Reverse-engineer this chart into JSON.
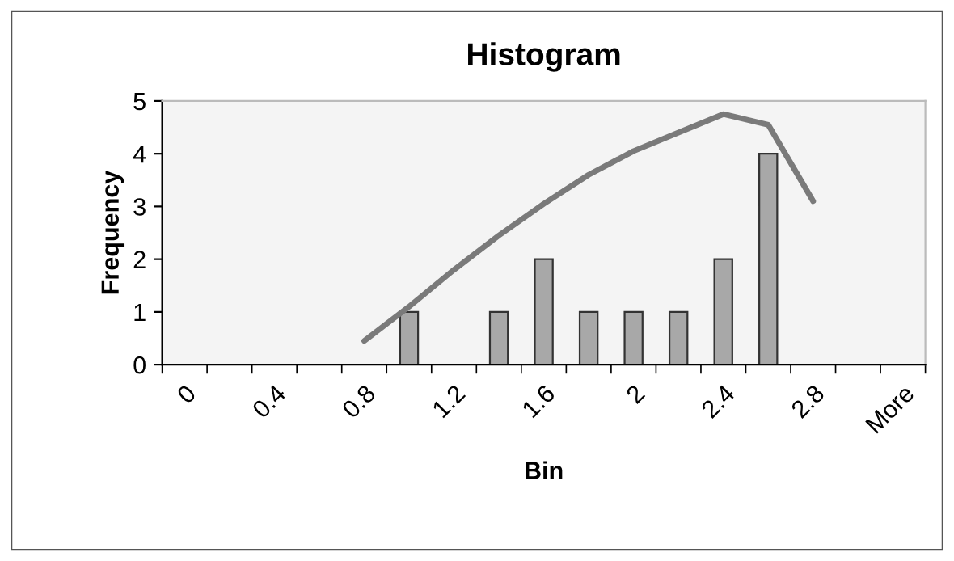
{
  "chart_data": {
    "type": "bar",
    "title": "Histogram",
    "xlabel": "Bin",
    "ylabel": "Frequency",
    "categories": [
      "0",
      null,
      "0.4",
      null,
      "0.8",
      null,
      "1.2",
      null,
      "1.6",
      null,
      "2",
      null,
      "2.4",
      null,
      "2.8",
      null,
      "More"
    ],
    "series": [
      {
        "color": "#a8a8a8",
        "values": [
          0,
          0,
          0,
          0,
          0,
          1,
          0,
          1,
          2,
          1,
          1,
          1,
          2,
          4,
          0,
          0,
          0
        ]
      },
      {
        "type": "line",
        "color": "#7a7a7a",
        "values": [
          null,
          null,
          null,
          null,
          0.45,
          1.1,
          1.8,
          2.45,
          3.05,
          3.6,
          4.05,
          4.4,
          4.75,
          4.55,
          3.1,
          null,
          null
        ]
      }
    ],
    "ylim": [
      0,
      5
    ],
    "yticks": [
      0,
      1,
      2,
      3,
      4,
      5
    ],
    "grid": false,
    "legend": false
  }
}
